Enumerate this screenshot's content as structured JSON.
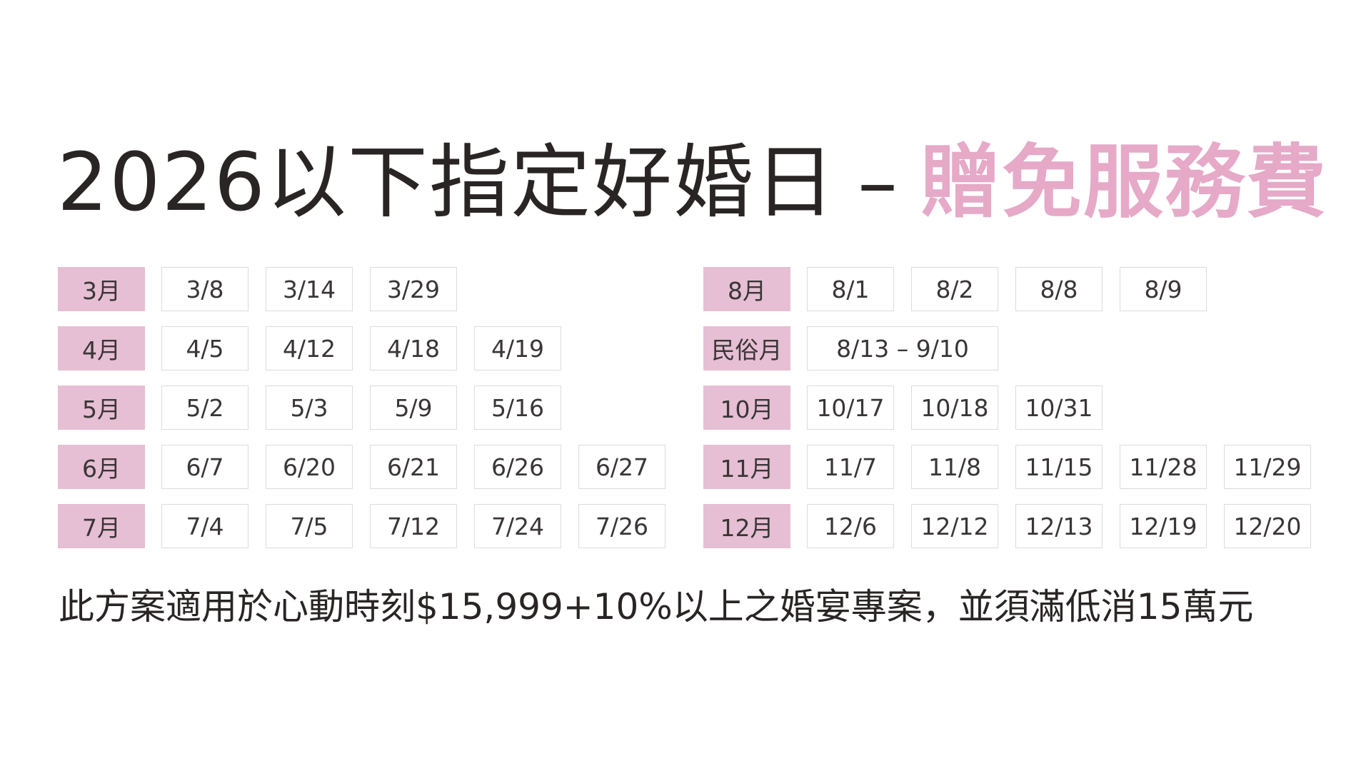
{
  "title": {
    "main": "2026以下指定好婚日",
    "separator": "–",
    "highlight": "贈免服務費"
  },
  "colors": {
    "accent": "#e6a9c8",
    "month_bg": "#e6bfd4",
    "text": "#2a2525"
  },
  "left_table": [
    {
      "month": "3月",
      "dates": [
        "3/8",
        "3/14",
        "3/29"
      ]
    },
    {
      "month": "4月",
      "dates": [
        "4/5",
        "4/12",
        "4/18",
        "4/19"
      ]
    },
    {
      "month": "5月",
      "dates": [
        "5/2",
        "5/3",
        "5/9",
        "5/16"
      ]
    },
    {
      "month": "6月",
      "dates": [
        "6/7",
        "6/20",
        "6/21",
        "6/26",
        "6/27"
      ]
    },
    {
      "month": "7月",
      "dates": [
        "7/4",
        "7/5",
        "7/12",
        "7/24",
        "7/26"
      ]
    }
  ],
  "right_table": [
    {
      "month": "8月",
      "dates": [
        "8/1",
        "8/2",
        "8/8",
        "8/9"
      ]
    },
    {
      "month": "民俗月",
      "dates": [
        "8/13 – 9/10"
      ]
    },
    {
      "month": "10月",
      "dates": [
        "10/17",
        "10/18",
        "10/31"
      ]
    },
    {
      "month": "11月",
      "dates": [
        "11/7",
        "11/8",
        "11/15",
        "11/28",
        "11/29"
      ]
    },
    {
      "month": "12月",
      "dates": [
        "12/6",
        "12/12",
        "12/13",
        "12/19",
        "12/20"
      ]
    }
  ],
  "footer": "此方案適用於心動時刻$15,999+10%以上之婚宴專案，並須滿低消15萬元"
}
